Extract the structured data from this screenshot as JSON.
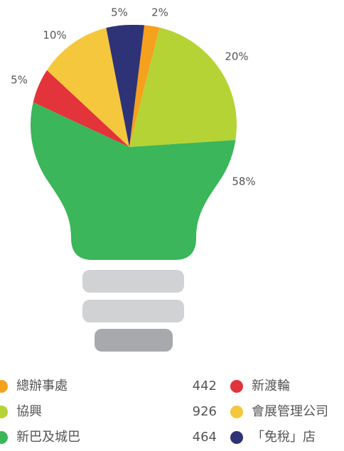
{
  "chart_data": {
    "type": "pie",
    "categories": [
      "總辦事處",
      "協興",
      "新巴及城巴",
      "新渡輪",
      "會展管理公司",
      "「免稅」店"
    ],
    "values": [
      2,
      20,
      58,
      5,
      10,
      5
    ],
    "value_labels": [
      "2%",
      "20%",
      "58%",
      "5%",
      "10%",
      "5%"
    ],
    "colors": [
      "#f5a11d",
      "#b5d334",
      "#3bb65a",
      "#e2343a",
      "#f5c73c",
      "#2e3277"
    ],
    "legend_counts": [
      442,
      926,
      464
    ]
  }
}
